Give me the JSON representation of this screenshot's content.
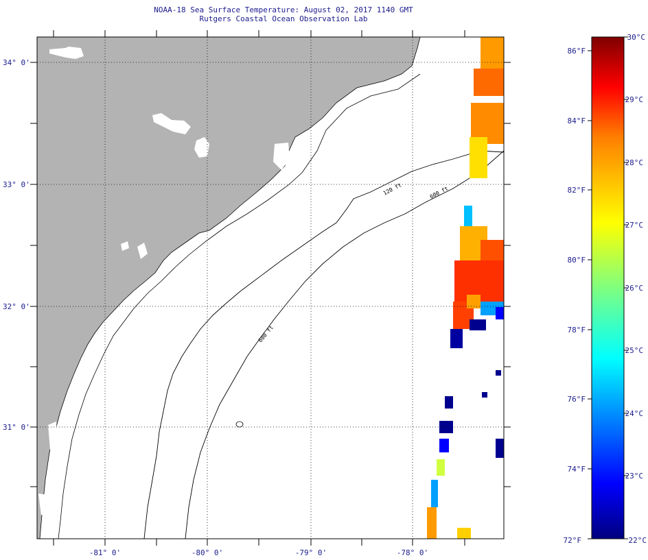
{
  "title_line1": "NOAA-18 Sea Surface Temperature:  August 02, 2017 1140 GMT",
  "title_line2": "Rutgers Coastal Ocean Observation Lab",
  "map": {
    "latitude_labels": [
      "34° 0'",
      "33° 0'",
      "32° 0'",
      "31° 0'"
    ],
    "longitude_labels": [
      "-81° 0'",
      "-80° 0'",
      "-79° 0'",
      "-78° 0'"
    ],
    "isobath_labels": [
      "120 ft",
      "600 ft",
      "600 ft"
    ],
    "land_color": "#b3b3b3",
    "ocean_color": "#ffffff"
  },
  "colorbar": {
    "fahrenheit_labels": [
      "86°F",
      "84°F",
      "82°F",
      "80°F",
      "78°F",
      "76°F",
      "74°F",
      "72°F"
    ],
    "celsius_labels": [
      "30°C",
      "29°C",
      "28°C",
      "27°C",
      "26°C",
      "25°C",
      "24°C",
      "23°C",
      "22°C"
    ],
    "range_c": [
      22,
      30
    ],
    "colors": [
      "#00007f",
      "#0000ff",
      "#007fff",
      "#00ffff",
      "#7fff7f",
      "#ffff00",
      "#ff7f00",
      "#ff0000",
      "#7f0000"
    ]
  }
}
